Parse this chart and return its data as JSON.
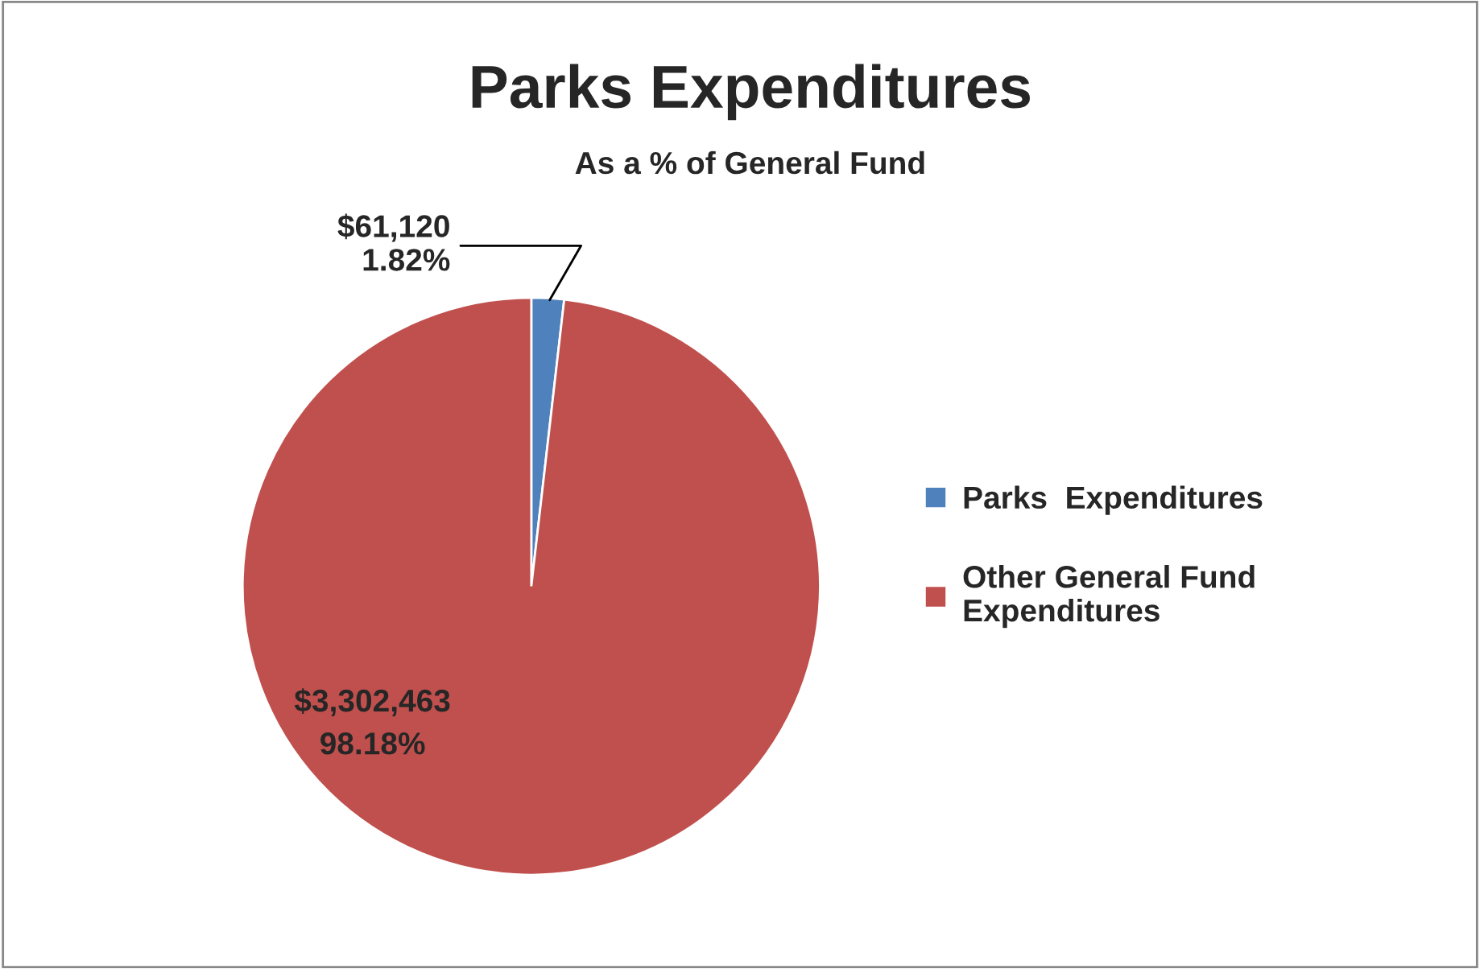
{
  "chart_data": {
    "type": "pie",
    "title": "Parks Expenditures",
    "subtitle": "As a % of General Fund",
    "categories": [
      "Parks  Expenditures",
      "Other General Fund\nExpenditures"
    ],
    "values": [
      61120,
      3302463
    ],
    "colors": [
      "#4f81bd",
      "#c0504d"
    ],
    "value_labels": [
      "$61,120\n1.82%",
      "$3,302,463\n98.18%"
    ],
    "legend": "right"
  }
}
